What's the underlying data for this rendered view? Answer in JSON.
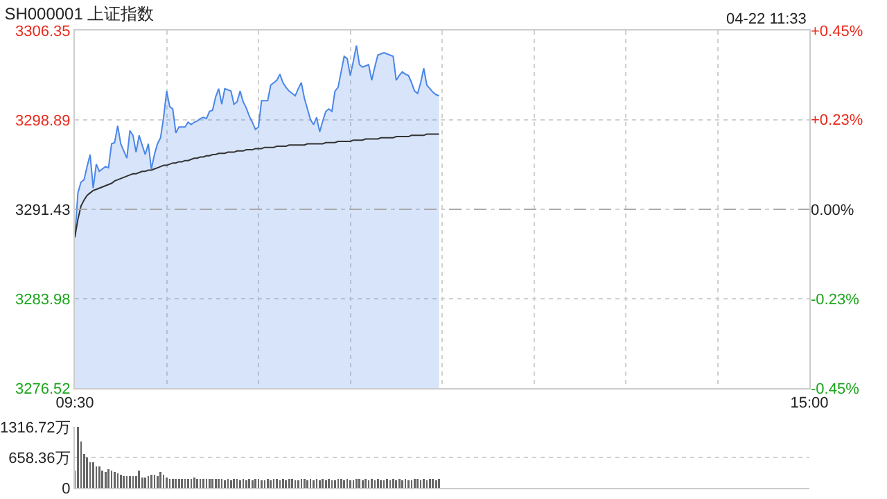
{
  "chart_data": [
    {
      "type": "area",
      "title": "SH000001 上证指数",
      "annotations": [
        "04-22 11:33"
      ],
      "categories": [
        "09:30",
        null,
        null,
        null,
        null,
        null,
        null,
        null,
        null,
        null,
        null,
        null,
        null,
        null,
        null,
        null,
        null,
        null,
        null,
        null,
        null,
        null,
        null,
        null,
        null,
        null,
        null,
        null,
        null,
        null,
        null,
        null,
        null,
        null,
        null,
        null,
        null,
        null,
        null,
        null,
        null,
        null,
        null,
        null,
        null,
        null,
        null,
        null,
        null,
        null,
        null,
        null,
        null,
        null,
        null,
        null,
        null,
        null,
        null,
        null,
        null,
        null,
        null,
        null,
        null,
        null,
        null,
        null,
        null,
        null,
        null,
        null,
        null,
        null,
        null,
        null,
        null,
        null,
        null,
        null,
        null,
        null,
        null,
        null,
        null,
        null,
        null,
        null,
        null,
        null,
        null,
        null,
        null,
        null,
        null,
        null,
        null,
        null,
        null,
        null,
        null,
        null,
        null,
        null,
        null,
        null,
        null,
        null,
        null,
        null,
        null,
        null,
        null,
        null,
        null,
        null,
        null,
        null,
        null,
        null,
        null,
        null,
        null,
        null,
        null,
        null,
        null,
        null,
        null,
        null,
        null,
        null,
        null,
        null,
        null,
        null,
        null,
        null,
        null,
        null,
        null,
        null,
        null,
        null,
        null,
        null,
        null,
        null,
        null,
        null,
        null,
        null,
        null,
        null,
        null,
        null,
        null,
        null,
        null,
        null,
        null,
        null,
        null,
        null,
        null,
        null,
        null,
        null,
        null,
        null,
        null,
        null,
        null,
        null,
        null,
        null,
        null,
        null,
        null,
        null,
        null,
        null,
        null,
        null,
        null,
        null,
        null,
        null,
        null,
        null,
        null,
        null,
        null,
        null,
        null,
        null,
        null,
        null,
        null,
        null,
        null,
        null,
        null,
        null,
        null,
        null,
        null,
        null,
        null,
        null,
        null,
        null,
        null,
        null,
        null,
        null,
        null,
        null,
        null,
        null,
        null,
        null,
        null,
        null,
        null,
        null,
        null,
        null,
        null,
        null,
        null,
        null,
        null,
        null,
        null,
        null,
        null,
        null,
        null,
        null,
        "15:00"
      ],
      "ylim": [
        3276.52,
        3306.35
      ],
      "yticks": [
        3276.52,
        3283.98,
        3291.43,
        3298.89,
        3306.35
      ],
      "y2lim": [
        -0.453,
        0.453
      ],
      "y2ticks": [
        {
          "value": -0.453,
          "label": "-0.45%"
        },
        {
          "value": -0.227,
          "label": "-0.23%"
        },
        {
          "value": 0,
          "label": "0.00%"
        },
        {
          "value": 0.227,
          "label": "+0.23%"
        },
        {
          "value": 0.453,
          "label": "+0.45%"
        }
      ],
      "grid": true,
      "ref_lines": [
        {
          "axis": "y",
          "value": 3291.43,
          "line_style": "dashed",
          "color": "#aaaaaa"
        }
      ],
      "series": [
        {
          "color": "#4a86e8",
          "values": [
            3289.1,
            3292.8,
            3293.7,
            3293.9,
            3295.0,
            3296.0,
            3293.2,
            3295.2,
            3294.6,
            3294.8,
            3295.0,
            3294.9,
            3296.9,
            3297.0,
            3298.4,
            3296.9,
            3296.3,
            3295.7,
            3298.0,
            3297.6,
            3296.2,
            3297.6,
            3296.8,
            3296.0,
            3296.9,
            3294.8,
            3296.0,
            3296.9,
            3297.4,
            3299.1,
            3301.3,
            3300.0,
            3299.8,
            3297.8,
            3298.3,
            3298.3,
            3298.3,
            3298.7,
            3298.5,
            3298.7,
            3298.8,
            3299.0,
            3299.1,
            3299.0,
            3299.6,
            3299.7,
            3300.8,
            3301.5,
            3300.2,
            3301.5,
            3301.4,
            3301.3,
            3300.2,
            3300.4,
            3301.3,
            3300.4,
            3299.9,
            3299.2,
            3298.7,
            3298.1,
            3298.3,
            3300.5,
            3300.5,
            3300.5,
            3301.8,
            3302.0,
            3302.2,
            3302.7,
            3302.0,
            3301.6,
            3301.3,
            3301.1,
            3300.9,
            3301.5,
            3302.0,
            3300.7,
            3299.8,
            3298.9,
            3298.5,
            3299.1,
            3297.9,
            3298.8,
            3299.6,
            3299.8,
            3299.6,
            3301.3,
            3301.6,
            3302.9,
            3304.2,
            3304.0,
            3302.6,
            3303.8,
            3305.1,
            3303.5,
            3303.3,
            3303.4,
            3303.5,
            3302.2,
            3303.3,
            3304.3,
            3304.4,
            3304.5,
            3304.4,
            3304.3,
            3304.2,
            3302.2,
            3302.6,
            3302.9,
            3302.7,
            3302.6,
            3302.0,
            3301.3,
            3301.1,
            3302.0,
            3303.2,
            3301.8,
            3301.5,
            3301.2,
            3301.0,
            3300.9,
            null,
            null,
            null,
            null,
            null,
            null,
            null,
            null,
            null,
            null,
            null,
            null,
            null,
            null,
            null,
            null,
            null,
            null,
            null,
            null,
            null,
            null,
            null,
            null,
            null,
            null,
            null,
            null,
            null,
            null,
            null,
            null,
            null,
            null,
            null,
            null,
            null,
            null,
            null,
            null,
            null,
            null,
            null,
            null,
            null,
            null,
            null,
            null,
            null,
            null,
            null,
            null,
            null,
            null,
            null,
            null,
            null,
            null,
            null,
            null,
            null,
            null,
            null,
            null,
            null,
            null,
            null,
            null,
            null,
            null,
            null,
            null,
            null,
            null,
            null,
            null,
            null,
            null,
            null,
            null,
            null,
            null,
            null,
            null,
            null,
            null,
            null,
            null,
            null,
            null,
            null,
            null,
            null,
            null,
            null,
            null,
            null,
            null,
            null,
            null,
            null,
            null,
            null,
            null,
            null,
            null,
            null,
            null,
            null,
            null,
            null,
            null,
            null,
            null,
            null,
            null,
            null,
            null,
            null,
            null,
            null
          ]
        },
        {
          "type": "line",
          "color": "#333333",
          "values": [
            3289.1,
            3290.6,
            3291.7,
            3292.2,
            3292.6,
            3292.8,
            3293.0,
            3293.1,
            3293.2,
            3293.3,
            3293.4,
            3293.5,
            3293.6,
            3293.8,
            3293.9,
            3294.0,
            3294.1,
            3294.2,
            3294.3,
            3294.4,
            3294.4,
            3294.5,
            3294.6,
            3294.6,
            3294.7,
            3294.7,
            3294.8,
            3294.9,
            3295.0,
            3295.1,
            3295.1,
            3295.2,
            3295.3,
            3295.3,
            3295.4,
            3295.4,
            3295.5,
            3295.5,
            3295.6,
            3295.7,
            3295.7,
            3295.8,
            3295.8,
            3295.9,
            3295.9,
            3296.0,
            3296.0,
            3296.1,
            3296.1,
            3296.1,
            3296.2,
            3296.2,
            3296.2,
            3296.3,
            3296.3,
            3296.3,
            3296.4,
            3296.4,
            3296.4,
            3296.5,
            3296.5,
            3296.5,
            3296.6,
            3296.6,
            3296.6,
            3296.6,
            3296.7,
            3296.7,
            3296.7,
            3296.7,
            3296.8,
            3296.8,
            3296.8,
            3296.8,
            3296.8,
            3296.8,
            3296.9,
            3296.9,
            3296.9,
            3296.9,
            3296.9,
            3296.9,
            3297.0,
            3297.0,
            3297.0,
            3297.0,
            3297.1,
            3297.1,
            3297.1,
            3297.1,
            3297.1,
            3297.2,
            3297.2,
            3297.2,
            3297.2,
            3297.3,
            3297.3,
            3297.3,
            3297.3,
            3297.3,
            3297.4,
            3297.4,
            3297.4,
            3297.4,
            3297.4,
            3297.5,
            3297.5,
            3297.5,
            3297.5,
            3297.5,
            3297.6,
            3297.6,
            3297.6,
            3297.6,
            3297.6,
            3297.7,
            3297.7,
            3297.7,
            3297.7,
            3297.7,
            null,
            null,
            null,
            null,
            null,
            null,
            null,
            null,
            null,
            null,
            null,
            null,
            null,
            null,
            null,
            null,
            null,
            null,
            null,
            null,
            null,
            null,
            null,
            null,
            null,
            null,
            null,
            null,
            null,
            null,
            null,
            null,
            null,
            null,
            null,
            null,
            null,
            null,
            null,
            null,
            null,
            null,
            null,
            null,
            null,
            null,
            null,
            null,
            null,
            null,
            null,
            null,
            null,
            null,
            null,
            null,
            null,
            null,
            null,
            null,
            null,
            null,
            null,
            null,
            null,
            null,
            null,
            null,
            null,
            null,
            null,
            null,
            null,
            null,
            null,
            null,
            null,
            null,
            null,
            null,
            null,
            null,
            null,
            null,
            null,
            null,
            null,
            null,
            null,
            null,
            null,
            null,
            null,
            null,
            null,
            null,
            null,
            null,
            null,
            null,
            null,
            null,
            null,
            null,
            null,
            null,
            null,
            null,
            null,
            null,
            null,
            null,
            null,
            null,
            null,
            null,
            null,
            null,
            null,
            null,
            null
          ]
        }
      ]
    },
    {
      "type": "bar",
      "categories": [
        null,
        null,
        null,
        null,
        null,
        null,
        null,
        null,
        null,
        null,
        null,
        null,
        null,
        null,
        null,
        null,
        null,
        null,
        null,
        null,
        null,
        null,
        null,
        null,
        null,
        null,
        null,
        null,
        null,
        null,
        null,
        null,
        null,
        null,
        null,
        null,
        null,
        null,
        null,
        null,
        null,
        null,
        null,
        null,
        null,
        null,
        null,
        null,
        null,
        null,
        null,
        null,
        null,
        null,
        null,
        null,
        null,
        null,
        null,
        null,
        null,
        null,
        null,
        null,
        null,
        null,
        null,
        null,
        null,
        null,
        null,
        null,
        null,
        null,
        null,
        null,
        null,
        null,
        null,
        null,
        null,
        null,
        null,
        null,
        null,
        null,
        null,
        null,
        null,
        null,
        null,
        null,
        null,
        null,
        null,
        null,
        null,
        null,
        null,
        null,
        null,
        null,
        null,
        null,
        null,
        null,
        null,
        null,
        null,
        null,
        null,
        null,
        null,
        null,
        null,
        null,
        null,
        null,
        null,
        null,
        null,
        null,
        null,
        null,
        null,
        null,
        null,
        null,
        null,
        null,
        null,
        null,
        null,
        null,
        null,
        null,
        null,
        null,
        null,
        null,
        null,
        null,
        null,
        null,
        null,
        null,
        null,
        null,
        null,
        null,
        null,
        null,
        null,
        null,
        null,
        null,
        null,
        null,
        null,
        null,
        null,
        null,
        null,
        null,
        null,
        null,
        null,
        null,
        null,
        null,
        null,
        null,
        null,
        null,
        null,
        null,
        null,
        null,
        null,
        null,
        null,
        null,
        null,
        null,
        null,
        null,
        null,
        null,
        null,
        null,
        null,
        null,
        null,
        null,
        null,
        null,
        null,
        null,
        null,
        null,
        null,
        null,
        null,
        null,
        null,
        null,
        null,
        null,
        null,
        null,
        null,
        null,
        null,
        null,
        null,
        null,
        null,
        null,
        null,
        null,
        null,
        null,
        null,
        null,
        null,
        null,
        null,
        null,
        null,
        null,
        null,
        null,
        null,
        null,
        null,
        null,
        null,
        null,
        null,
        null,
        null
      ],
      "tick_labels": "y",
      "ylim": [
        0,
        1316.72
      ],
      "yticks": [
        0,
        {
          "value": 658.36,
          "label": "658.36万"
        },
        {
          "value": 1316.72,
          "label": "1316.72万"
        }
      ],
      "grid": "y",
      "series": [
        {
          "color": "#666666",
          "values": [
            380,
            1316.72,
            1000,
            730,
            660,
            560,
            560,
            470,
            470,
            370,
            350,
            410,
            380,
            350,
            320,
            280,
            260,
            260,
            260,
            260,
            260,
            370,
            230,
            230,
            260,
            280,
            290,
            260,
            340,
            280,
            230,
            200,
            200,
            190,
            200,
            190,
            200,
            190,
            200,
            220,
            200,
            190,
            200,
            200,
            190,
            190,
            200,
            190,
            190,
            170,
            190,
            170,
            200,
            190,
            170,
            190,
            170,
            200,
            170,
            190,
            200,
            170,
            170,
            190,
            170,
            190,
            200,
            170,
            190,
            170,
            200,
            190,
            170,
            170,
            190,
            200,
            170,
            190,
            170,
            190,
            170,
            200,
            170,
            190,
            170,
            170,
            190,
            200,
            170,
            190,
            170,
            170,
            190,
            200,
            170,
            190,
            170,
            200,
            170,
            190,
            170,
            170,
            190,
            170,
            200,
            170,
            190,
            170,
            190,
            170,
            170,
            190,
            200,
            170,
            190,
            170,
            190,
            200,
            170,
            190,
            null,
            null,
            null,
            null,
            null,
            null,
            null,
            null,
            null,
            null,
            null,
            null,
            null,
            null,
            null,
            null,
            null,
            null,
            null,
            null,
            null,
            null,
            null,
            null,
            null,
            null,
            null,
            null,
            null,
            null,
            null,
            null,
            null,
            null,
            null,
            null,
            null,
            null,
            null,
            null,
            null,
            null,
            null,
            null,
            null,
            null,
            null,
            null,
            null,
            null,
            null,
            null,
            null,
            null,
            null,
            null,
            null,
            null,
            null,
            null,
            null,
            null,
            null,
            null,
            null,
            null,
            null,
            null,
            null,
            null,
            null,
            null,
            null,
            null,
            null,
            null,
            null,
            null,
            null,
            null,
            null,
            null,
            null,
            null,
            null,
            null,
            null,
            null,
            null,
            null,
            null,
            null,
            null,
            null,
            null,
            null,
            null,
            null,
            null,
            null,
            null,
            null,
            null,
            null,
            null,
            null,
            null,
            null,
            null,
            null,
            null,
            null,
            null,
            null,
            null,
            null,
            null,
            null,
            null,
            null,
            null
          ]
        }
      ]
    }
  ]
}
